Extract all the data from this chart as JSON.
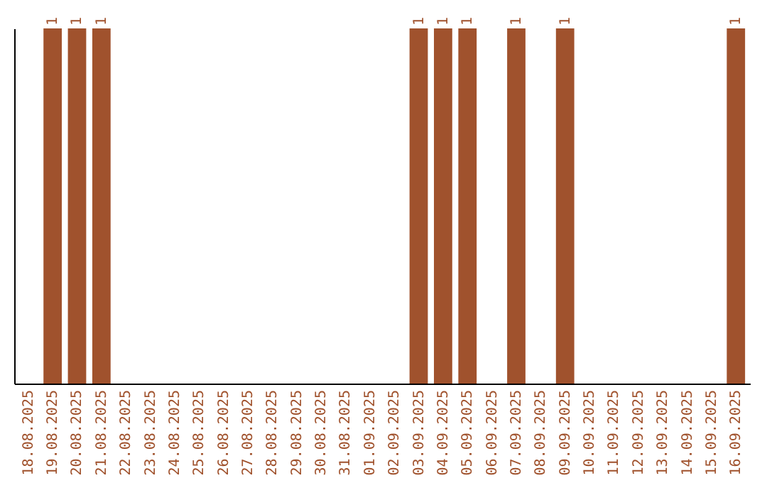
{
  "chart_data": {
    "type": "bar",
    "color": "#a0522d",
    "categories": [
      "18.08.2025",
      "19.08.2025",
      "20.08.2025",
      "21.08.2025",
      "22.08.2025",
      "23.08.2025",
      "24.08.2025",
      "25.08.2025",
      "26.08.2025",
      "27.08.2025",
      "28.08.2025",
      "29.08.2025",
      "30.08.2025",
      "31.08.2025",
      "01.09.2025",
      "02.09.2025",
      "03.09.2025",
      "04.09.2025",
      "05.09.2025",
      "06.09.2025",
      "07.09.2025",
      "08.09.2025",
      "09.09.2025",
      "10.09.2025",
      "11.09.2025",
      "12.09.2025",
      "13.09.2025",
      "14.09.2025",
      "15.09.2025",
      "16.09.2025"
    ],
    "values": [
      0,
      1,
      1,
      1,
      0,
      0,
      0,
      0,
      0,
      0,
      0,
      0,
      0,
      0,
      0,
      0,
      1,
      1,
      1,
      0,
      1,
      0,
      1,
      0,
      0,
      0,
      0,
      0,
      0,
      1
    ],
    "value_labels": [
      null,
      "1",
      "1",
      "1",
      null,
      null,
      null,
      null,
      null,
      null,
      null,
      null,
      null,
      null,
      null,
      null,
      "1",
      "1",
      "1",
      null,
      "1",
      null,
      "1",
      null,
      null,
      null,
      null,
      null,
      null,
      "1"
    ]
  }
}
